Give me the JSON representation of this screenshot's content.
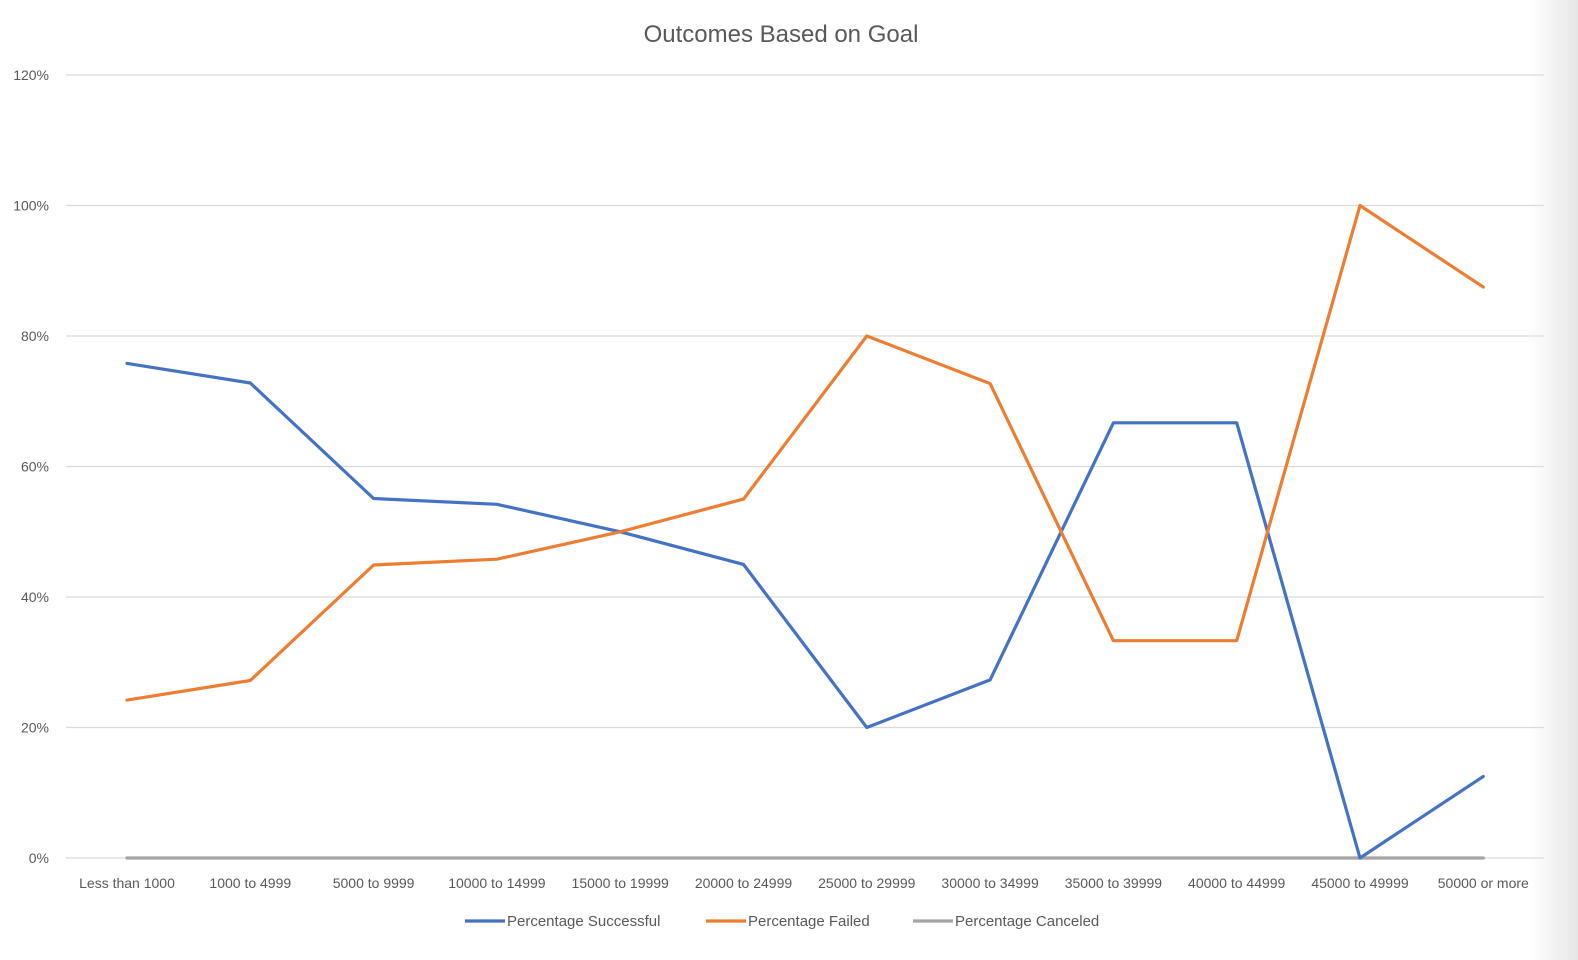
{
  "chart_data": {
    "type": "line",
    "title": "Outcomes Based on Goal",
    "xlabel": "",
    "ylabel": "",
    "categories": [
      "Less than 1000",
      "1000 to 4999",
      "5000 to 9999",
      "10000 to 14999",
      "15000 to 19999",
      "20000 to 24999",
      "25000 to 29999",
      "30000 to 34999",
      "35000 to 39999",
      "40000 to 44999",
      "45000 to 49999",
      "50000 or more"
    ],
    "ylim": [
      0,
      1.2
    ],
    "yticks": [
      0,
      0.2,
      0.4,
      0.6,
      0.8,
      1.0,
      1.2
    ],
    "ytick_labels": [
      "0%",
      "20%",
      "40%",
      "60%",
      "80%",
      "100%",
      "120%"
    ],
    "grid": true,
    "legend_position": "bottom",
    "series": [
      {
        "name": "Percentage Successful",
        "color": "#4472C4",
        "values": [
          0.758,
          0.728,
          0.551,
          0.542,
          0.5,
          0.45,
          0.2,
          0.273,
          0.667,
          0.667,
          0.0,
          0.125
        ]
      },
      {
        "name": "Percentage Failed",
        "color": "#ED7D31",
        "values": [
          0.242,
          0.272,
          0.449,
          0.458,
          0.5,
          0.55,
          0.8,
          0.727,
          0.333,
          0.333,
          1.0,
          0.875
        ]
      },
      {
        "name": "Percentage Canceled",
        "color": "#A5A5A5",
        "values": [
          0,
          0,
          0,
          0,
          0,
          0,
          0,
          0,
          0,
          0,
          0,
          0
        ]
      }
    ]
  }
}
